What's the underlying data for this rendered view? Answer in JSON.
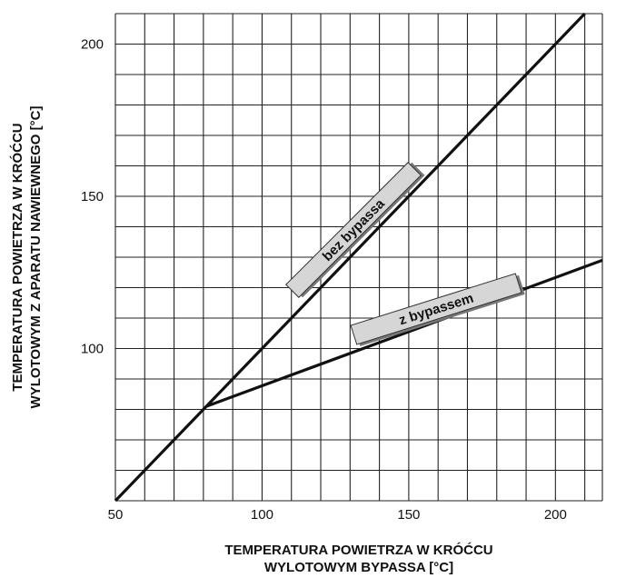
{
  "chart_data": {
    "type": "line",
    "xlabel": [
      "TEMPERATURA POWIETRZA W KRÓĆCU",
      "WYLOTOWYM BYPASSA [°C]"
    ],
    "ylabel": [
      "TEMPERATURA POWIETRZA W KRÓĆCU",
      "WYLOTOWYM Z APARATU NAWIEWNEGO [°C]"
    ],
    "xlim": [
      50,
      216
    ],
    "ylim": [
      50,
      210
    ],
    "x_ticks": [
      50,
      100,
      150,
      200
    ],
    "x_tick_labels": [
      "50",
      "100",
      "150",
      "200"
    ],
    "y_ticks": [
      100,
      150,
      200
    ],
    "y_tick_labels": [
      "100",
      "150",
      "200"
    ],
    "grid": true,
    "grid_step": 10,
    "series": [
      {
        "name": "bez bypassa",
        "x": [
          50,
          210
        ],
        "y": [
          50,
          210
        ],
        "color": "#111111"
      },
      {
        "name": "z bypassem",
        "x": [
          81,
          216
        ],
        "y": [
          81,
          129
        ],
        "color": "#111111"
      }
    ],
    "label_color": "#d6d6d6"
  }
}
